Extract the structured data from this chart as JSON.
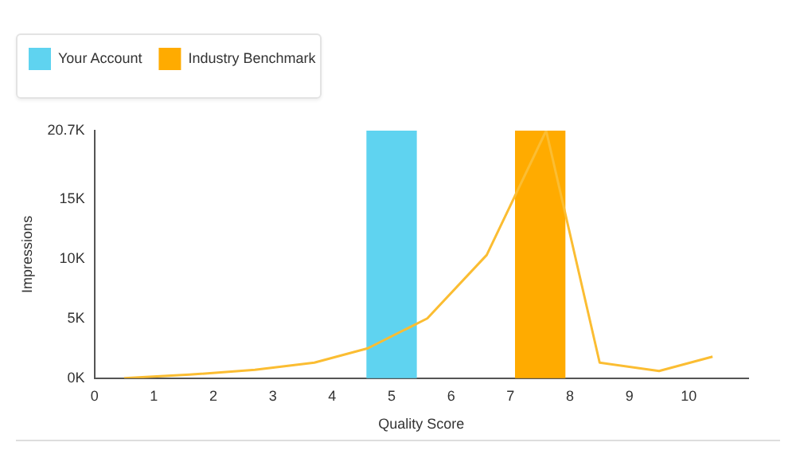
{
  "chart_data": {
    "type": "bar",
    "xlabel": "Quality Score",
    "ylabel": "Impressions",
    "xlim": [
      0,
      11
    ],
    "xticks": [
      0,
      1,
      2,
      3,
      4,
      5,
      6,
      7,
      8,
      9,
      10
    ],
    "ylim": [
      0,
      20700
    ],
    "yticks": [
      {
        "value": 0,
        "label": "0K"
      },
      {
        "value": 5000,
        "label": "5K"
      },
      {
        "value": 10000,
        "label": "10K"
      },
      {
        "value": 15000,
        "label": "15K"
      },
      {
        "value": 20700,
        "label": "20.7K"
      }
    ],
    "grid": false,
    "legend": "top left",
    "series": [
      {
        "name": "Your Account",
        "color": "#5fd3f0",
        "x": [
          5
        ],
        "values": [
          20700
        ]
      },
      {
        "name": "Industry Benchmark",
        "color": "#ffab00",
        "x": [
          7.5
        ],
        "values": [
          20700
        ]
      },
      {
        "type": "line",
        "color": "#fbbd32",
        "marker": "none",
        "x": [
          0.5,
          1.6,
          2.7,
          3.7,
          4.6,
          5.6,
          6.6,
          7.6,
          8.5,
          9.5,
          10.4
        ],
        "values": [
          0,
          300,
          700,
          1300,
          2500,
          5000,
          10300,
          20700,
          1300,
          600,
          1800
        ]
      }
    ]
  }
}
